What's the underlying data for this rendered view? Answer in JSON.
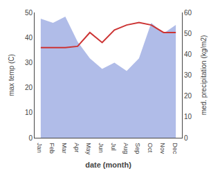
{
  "chart_data": {
    "type": "line",
    "xlabel": "date (month)",
    "ylabel": "max temp (C)",
    "y2label": "med. precipitation (kg/m2)",
    "categories": [
      "Jan",
      "Feb",
      "Mar",
      "Apr",
      "May",
      "Jun",
      "Jul",
      "Aug",
      "Sep",
      "Oct",
      "Nov",
      "Dec"
    ],
    "series": [
      {
        "type": "area",
        "color": "#b0bce8",
        "axis": "y2",
        "values": [
          57,
          55,
          58,
          46,
          38,
          33,
          36,
          32,
          38,
          55,
          50,
          54
        ]
      },
      {
        "type": "line",
        "color": "#cc3333",
        "values": [
          36,
          36,
          36,
          36.5,
          42,
          38,
          43,
          45,
          46,
          45,
          42,
          42
        ]
      }
    ],
    "ylim": [
      0,
      50
    ],
    "yticks": [
      0,
      10,
      20,
      30,
      40,
      50
    ],
    "y2lim": [
      0,
      60
    ],
    "y2ticks": [
      0,
      10,
      20,
      30,
      40,
      50,
      60
    ],
    "grid": false
  }
}
